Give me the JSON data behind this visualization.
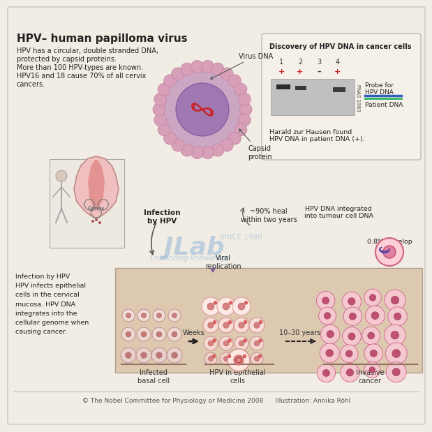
{
  "bg_color": "#f2ede4",
  "border_color": "#cccccc",
  "title": "HPV– human papilloma virus",
  "intro_lines": [
    "HPV has a circular, double stranded DNA,",
    "protected by capsid proteins.",
    "More than 100 HPV-types are known.",
    "HPV16 and 18 cause 70% of all cervix",
    "cancers."
  ],
  "discovery_title": "Discovery of HPV DNA in cancer cells",
  "discovery_caption": "Harald zur Hausen found\nHPV DNA in patient DNA (+).",
  "probe_label": "Probe for\nHPV DNA",
  "patient_label": "Patient DNA",
  "pnas_label": "PNAS 1983",
  "lane_labels": [
    "1",
    "2",
    "3",
    "4"
  ],
  "probe_signs": [
    "+",
    "+",
    "–",
    "+"
  ],
  "virus_dna_label": "Virus DNA",
  "capsid_label": "Capsid\nprotein",
  "cervix_label": "Cervix",
  "infection_label": "Infection\nby HPV",
  "heal_label": "~90% heal\nwithin two years",
  "integrated_label": "HPV DNA integrated\ninto tumour cell DNA",
  "cancer_pct": "0.8% develop\ncancer",
  "infection_desc": "Infection by HPV\nHPV infects epithelial\ncells in the cervical\nmucosa. HPV DNA\nintegrates into the\ncellular genome when\ncausing cancer.",
  "infected_label": "Infected\nbasal cell",
  "weeks_label": "Weeks",
  "hpv_epi_label": "HPV in epithelial\ncells",
  "replication_label": "Viral\nreplication",
  "years_label": "10–30 years",
  "invasive_label": "Invasive\ncancer",
  "footer": "© The Nobel Committee for Physiology or Medicine 2008      Illustration: Annika Röhl",
  "watermark": "JLab",
  "watermark2": "SINCE 1980",
  "watermark3": "Enhancing knowledge",
  "pink_light": "#f5c6d0",
  "pink_med": "#e8a0b0",
  "pink_dark": "#d06080",
  "purple_light": "#c8a0c8",
  "purple_med": "#8050a0",
  "red_color": "#cc2020",
  "tan_color": "#d4b896",
  "cell_bg": "#ddc8b0",
  "dark_text": "#222222",
  "arrow_color": "#555555"
}
